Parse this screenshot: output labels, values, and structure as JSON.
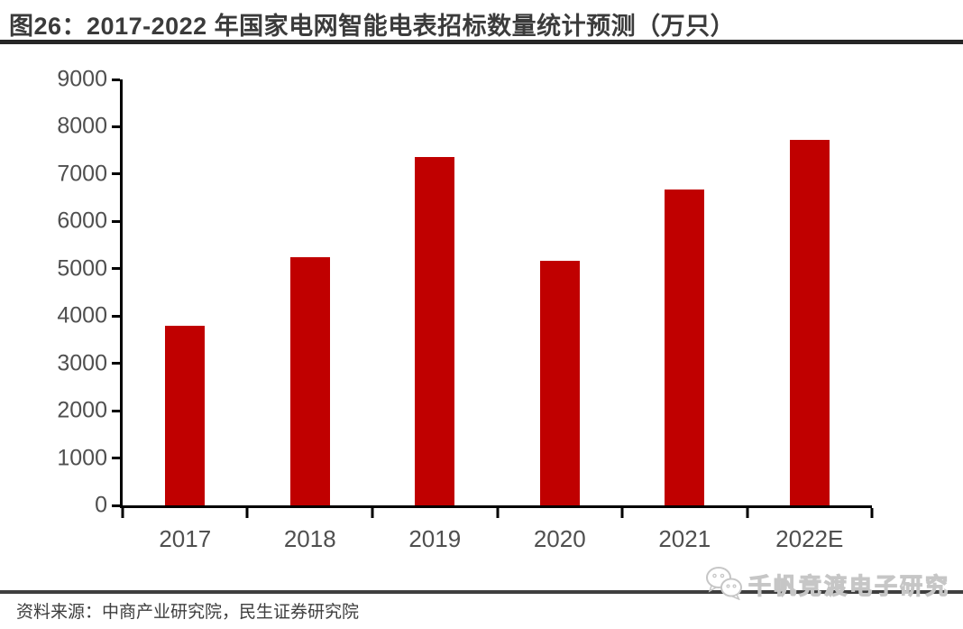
{
  "header": {
    "title": "图26：2017-2022 年国家电网智能电表招标数量统计预测（万只）"
  },
  "chart_data": {
    "type": "bar",
    "categories": [
      "2017",
      "2018",
      "2019",
      "2020",
      "2021",
      "2022E"
    ],
    "values": [
      3800,
      5250,
      7370,
      5170,
      6670,
      7730
    ],
    "title": "图26：2017-2022 年国家电网智能电表招标数量统计预测（万只）",
    "xlabel": "",
    "ylabel": "",
    "ylim": [
      0,
      9000
    ],
    "yticks": [
      0,
      1000,
      2000,
      3000,
      4000,
      5000,
      6000,
      7000,
      8000,
      9000
    ],
    "grid": false,
    "legend_position": "none",
    "bar_color": "#c00000",
    "axis_color": "#000000",
    "tick_label_color": "#4f4f4f"
  },
  "footer": {
    "source": "资料来源：中商产业研究院，民生证券研究院"
  },
  "watermark": {
    "icon": "wechat-icon",
    "text": "千帆竞渡电子研究"
  }
}
